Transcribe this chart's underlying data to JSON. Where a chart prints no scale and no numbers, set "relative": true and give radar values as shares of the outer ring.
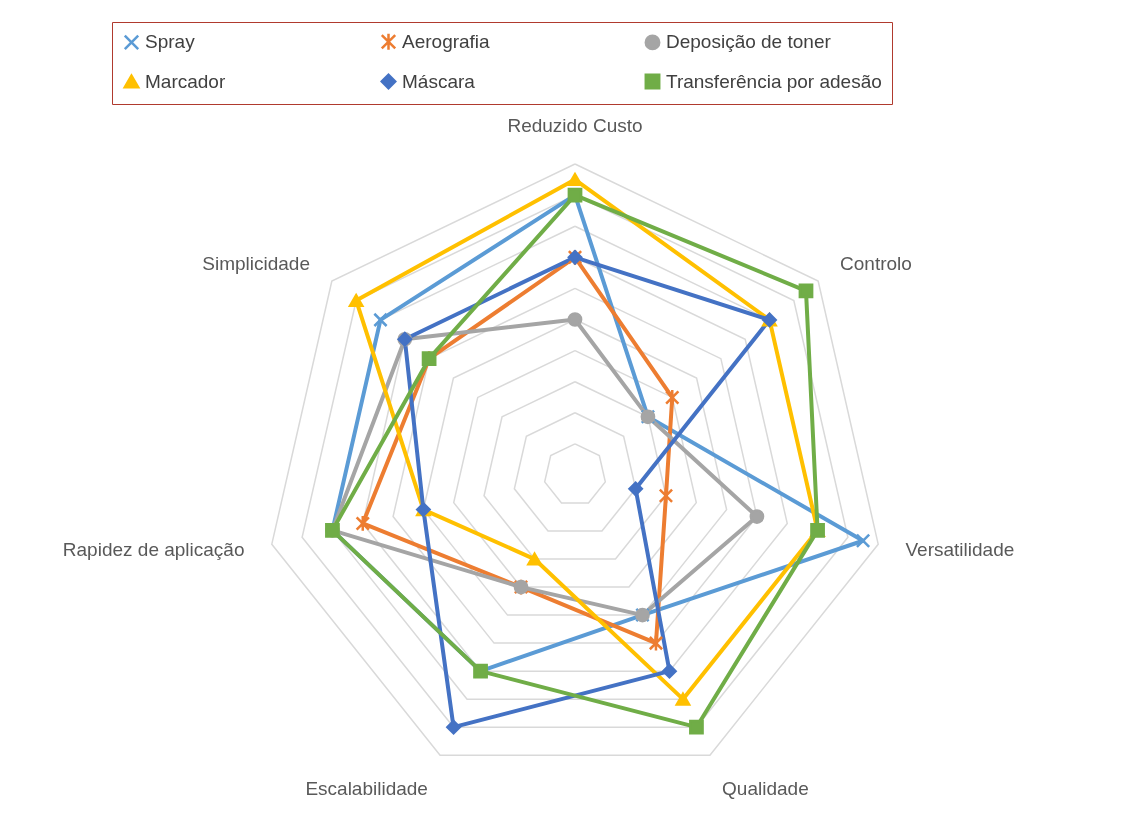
{
  "chart_data": {
    "type": "radar",
    "relative": true,
    "grid": true,
    "legend": "top",
    "line_style": "solid",
    "categories": [
      "Reduzido Custo",
      "Controlo",
      "Versatilidade",
      "Qualidade",
      "Escalabilidade",
      "Rapidez de aplicação",
      "Simplicidade"
    ],
    "series": [
      {
        "name": "Spray",
        "color": "#5b9bd5",
        "marker": "cross",
        "values": [
          0.9,
          0.3,
          0.95,
          0.5,
          0.7,
          0.8,
          0.8
        ]
      },
      {
        "name": "Aerografia",
        "color": "#ed7d31",
        "marker": "star",
        "values": [
          0.7,
          0.4,
          0.3,
          0.6,
          0.4,
          0.7,
          0.6
        ]
      },
      {
        "name": "Deposição de toner",
        "color": "#a5a5a5",
        "marker": "circle",
        "values": [
          0.5,
          0.3,
          0.6,
          0.5,
          0.4,
          0.8,
          0.7
        ]
      },
      {
        "name": "Marcador",
        "color": "#ffc000",
        "marker": "triangle",
        "values": [
          0.95,
          0.8,
          0.8,
          0.8,
          0.3,
          0.5,
          0.9
        ]
      },
      {
        "name": "Máscara",
        "color": "#4472c4",
        "marker": "diamond",
        "values": [
          0.7,
          0.8,
          0.2,
          0.7,
          0.9,
          0.5,
          0.7
        ]
      },
      {
        "name": "Transferência por adesão",
        "color": "#70ad47",
        "marker": "square",
        "values": [
          0.9,
          0.95,
          0.8,
          0.9,
          0.7,
          0.8,
          0.6
        ]
      }
    ]
  }
}
